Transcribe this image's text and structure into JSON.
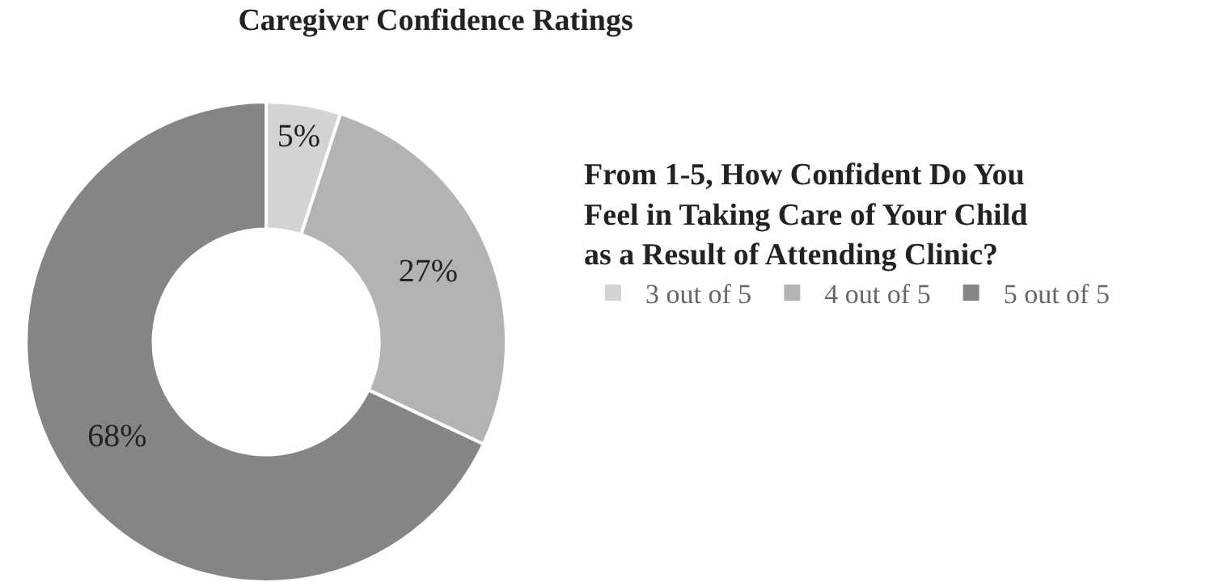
{
  "chart_data": {
    "type": "donut",
    "title": "Caregiver Confidence Ratings",
    "legend_title": "From 1-5, How Confident Do You Feel in Taking Care of Your Child as a Result of Attending Clinic?",
    "categories": [
      "3 out of 5",
      "4 out of 5",
      "5 out of 5"
    ],
    "values": [
      5,
      27,
      68
    ],
    "value_labels": [
      "5%",
      "27%",
      "68%"
    ],
    "colors": [
      "#d3d3d3",
      "#b3b3b3",
      "#858585"
    ],
    "legend": "right"
  }
}
